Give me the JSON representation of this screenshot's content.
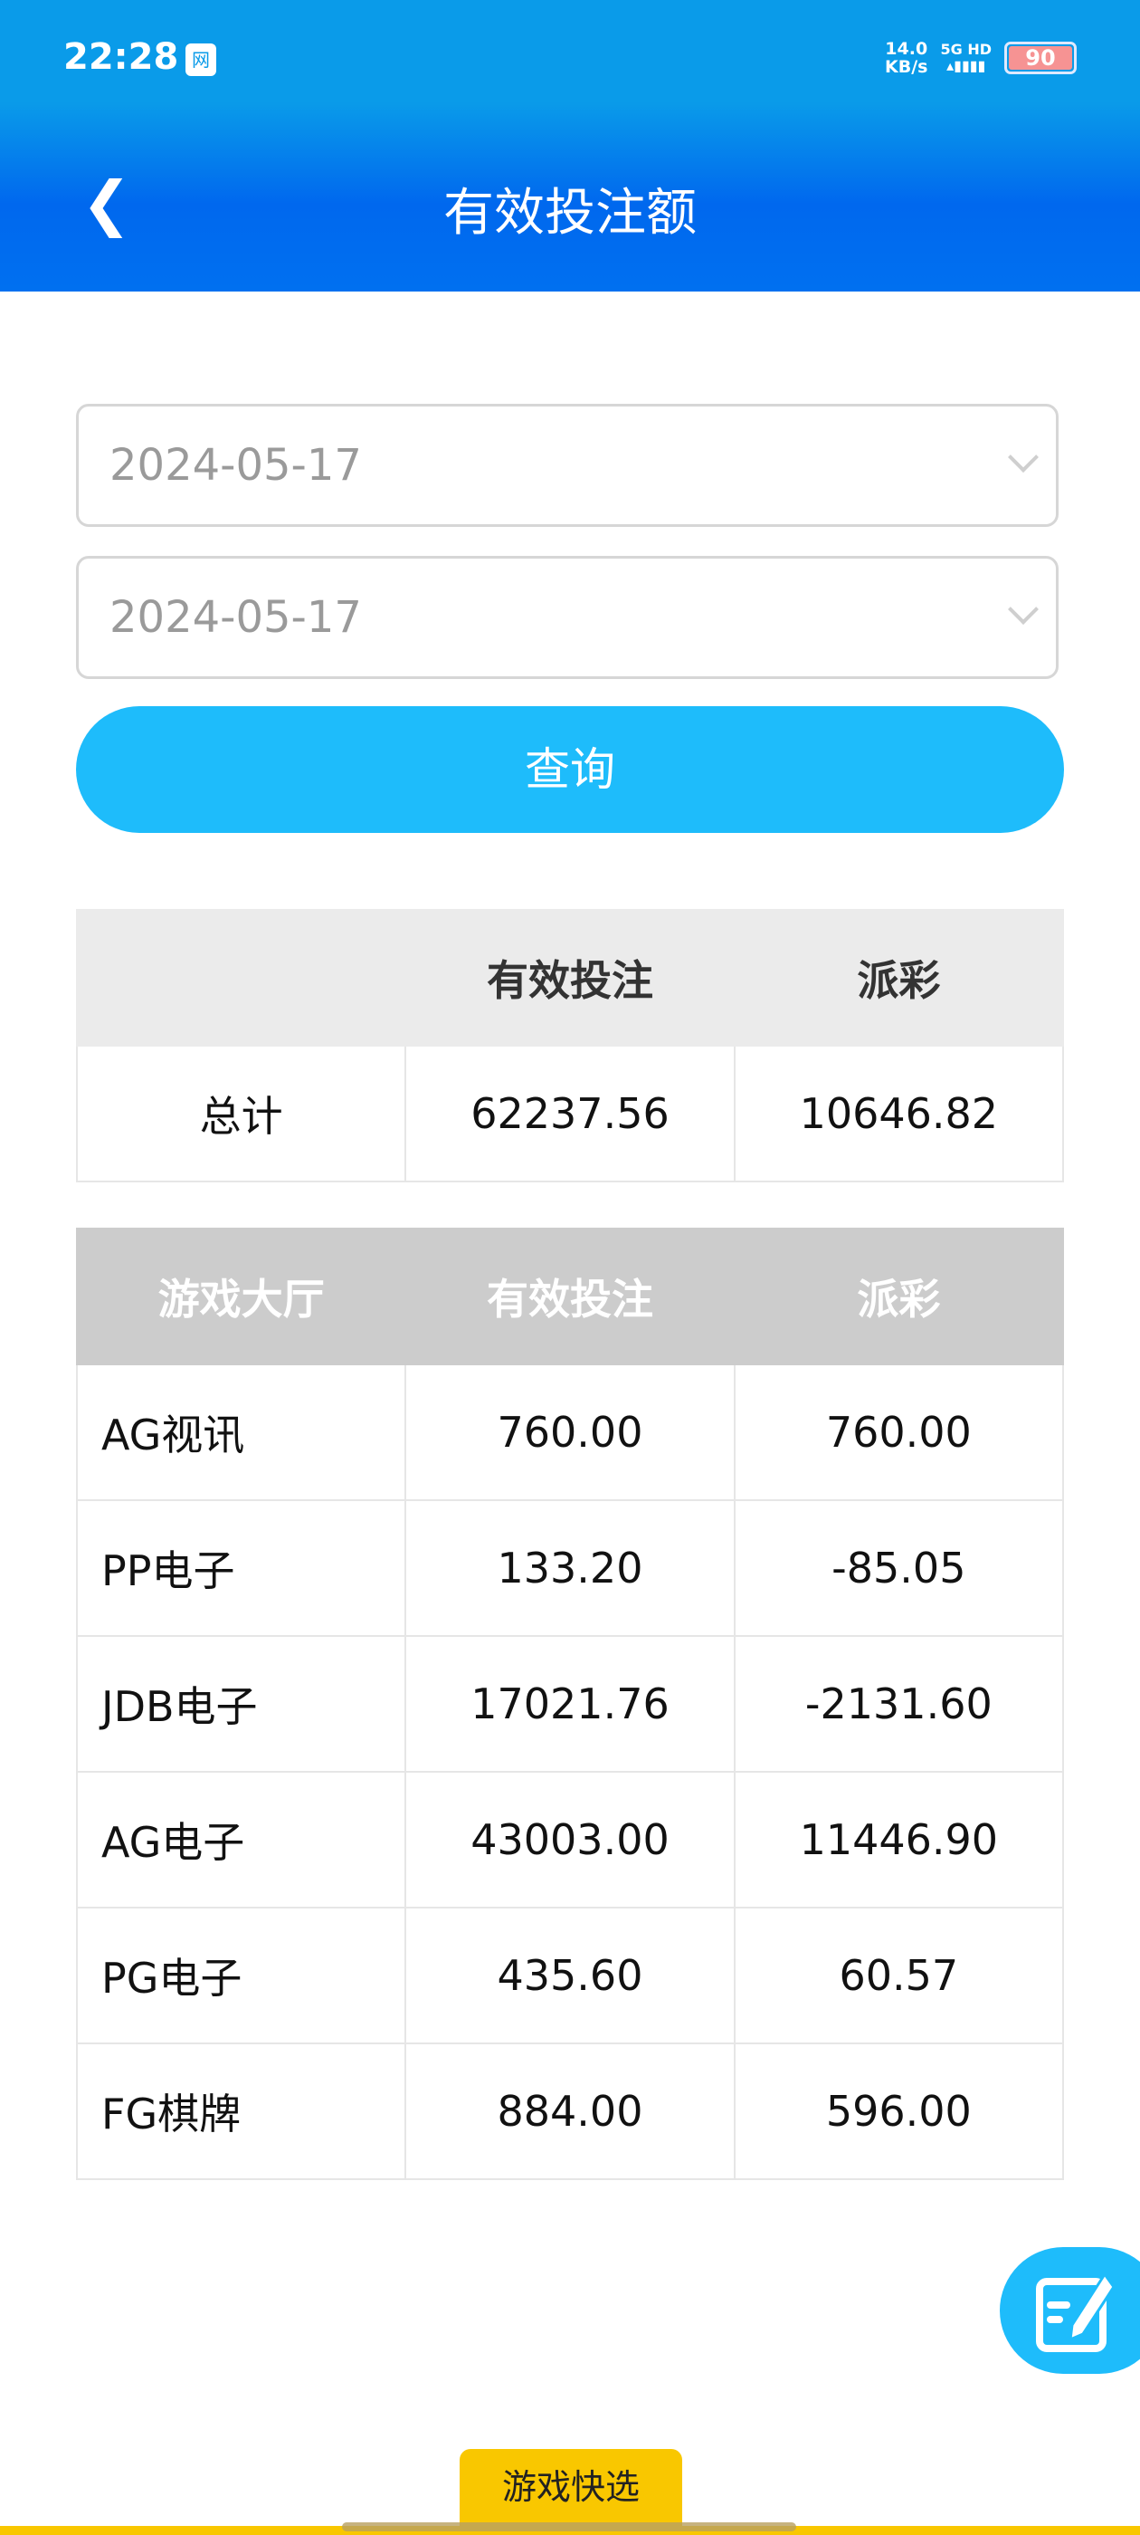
{
  "status_bar": {
    "time": "22:28",
    "badge": "网",
    "speed_value": "14.0",
    "speed_unit": "KB/s",
    "network": "5G HD",
    "battery": "90"
  },
  "header": {
    "title": "有效投注额",
    "back_icon": "chevron-left-icon"
  },
  "filters": {
    "start_date": "2024-05-17",
    "end_date": "2024-05-17",
    "query_label": "查询"
  },
  "summary_table": {
    "headers": [
      "",
      "有效投注",
      "派彩"
    ],
    "rows": [
      {
        "label": "总计",
        "valid_bet": "62237.56",
        "payout": "10646.82"
      }
    ]
  },
  "hall_table": {
    "headers": [
      "游戏大厅",
      "有效投注",
      "派彩"
    ],
    "rows": [
      {
        "hall": "AG视讯",
        "valid_bet": "760.00",
        "payout": "760.00"
      },
      {
        "hall": "PP电子",
        "valid_bet": "133.20",
        "payout": "-85.05"
      },
      {
        "hall": "JDB电子",
        "valid_bet": "17021.76",
        "payout": "-2131.60"
      },
      {
        "hall": "AG电子",
        "valid_bet": "43003.00",
        "payout": "11446.90"
      },
      {
        "hall": "PG电子",
        "valid_bet": "435.60",
        "payout": "60.57"
      },
      {
        "hall": "FG棋牌",
        "valid_bet": "884.00",
        "payout": "596.00"
      }
    ]
  },
  "floating_button": {
    "icon": "edit-note-icon"
  },
  "bottom": {
    "quick_select_label": "游戏快选"
  },
  "colors": {
    "accent": "#1ebcfb",
    "header_top": "#0a9be9",
    "header_bottom": "#0068ee",
    "tab": "#f9c700"
  }
}
